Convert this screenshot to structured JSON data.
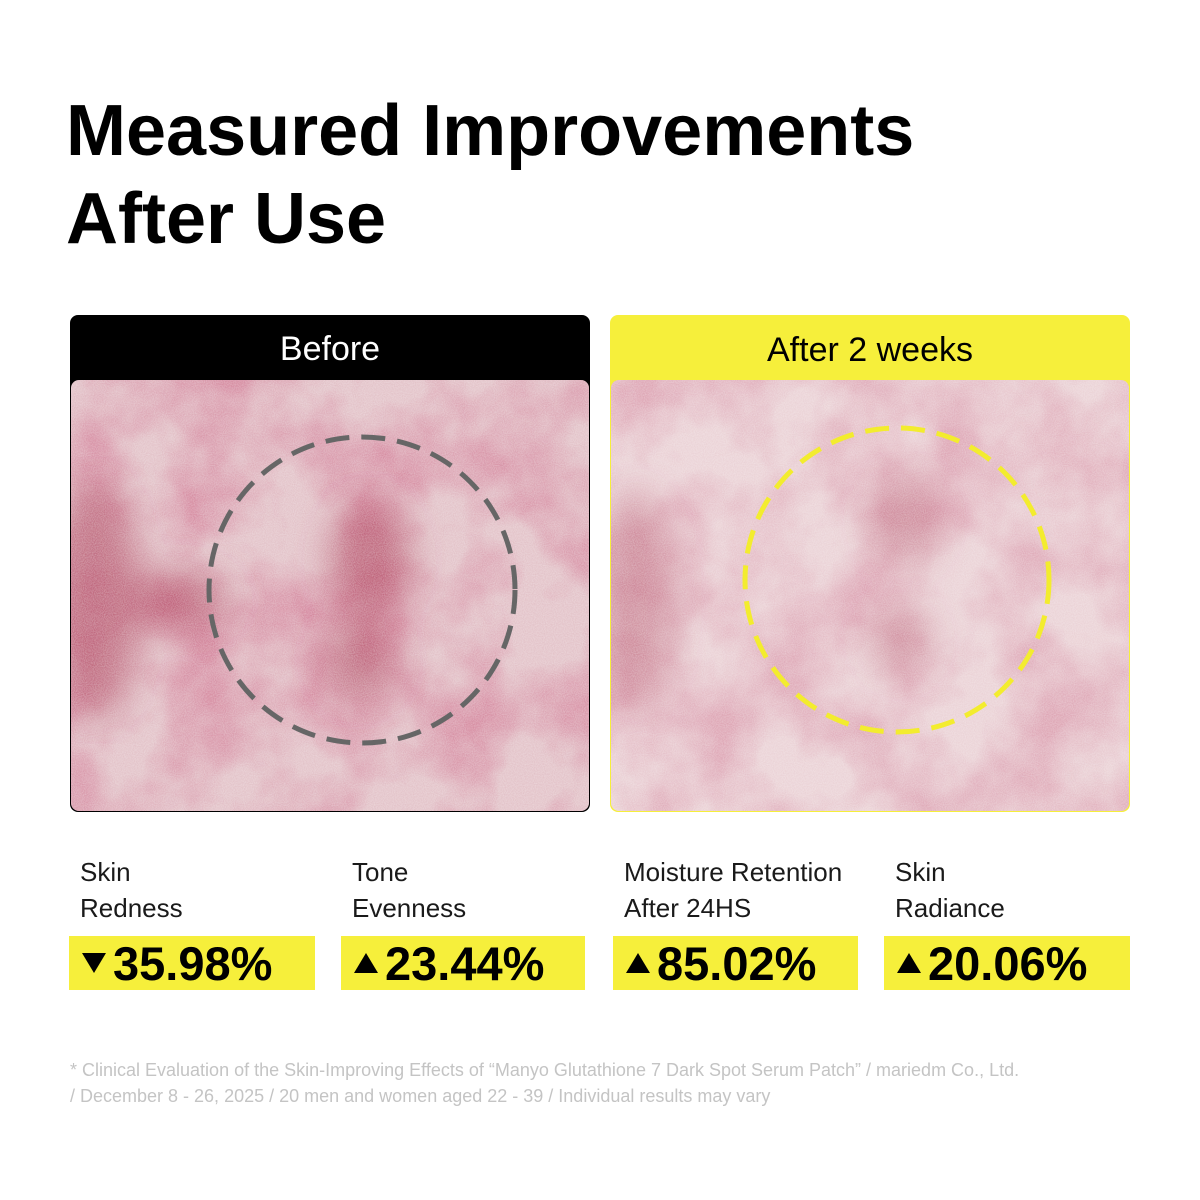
{
  "header": {
    "title_lines": [
      "Measured Improvements",
      "After Use"
    ]
  },
  "panels": [
    {
      "label": "Before",
      "theme": "dark"
    },
    {
      "label": "After 2 weeks",
      "theme": "yellow"
    }
  ],
  "metrics": [
    {
      "label_lines": [
        "Skin",
        "Redness"
      ],
      "direction": "down",
      "value": "35.98%"
    },
    {
      "label_lines": [
        "Tone",
        "Evenness"
      ],
      "direction": "up",
      "value": "23.44%"
    },
    {
      "label_lines": [
        "Moisture Retention",
        "After 24HS"
      ],
      "direction": "up",
      "value": "85.02%"
    },
    {
      "label_lines": [
        "Skin",
        "Radiance"
      ],
      "direction": "up",
      "value": "20.06%"
    }
  ],
  "footnote_lines": [
    "* Clinical Evaluation of the Skin-Improving Effects of “Manyo Glutathione 7 Dark Spot Serum Patch” / mariedm Co., Ltd.",
    "/ December 8 - 26, 2025 / 20 men and women aged 22 - 39 / Individual results may vary"
  ]
}
